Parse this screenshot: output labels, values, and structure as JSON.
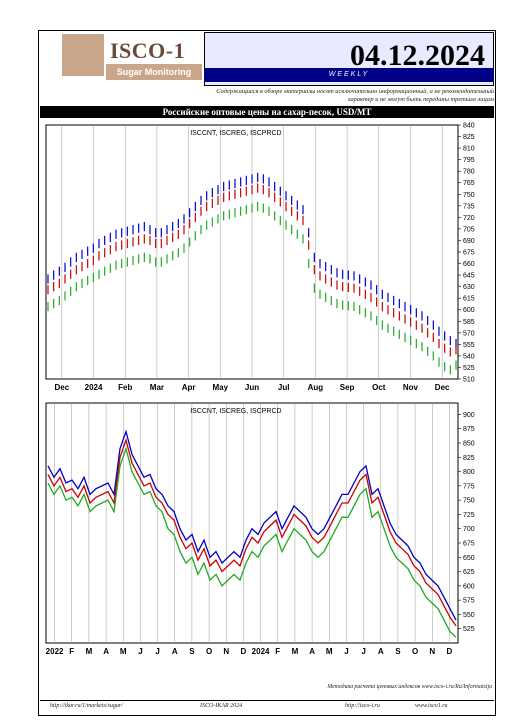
{
  "header": {
    "logo_text": "ISCO-1",
    "logo_sub": "Sugar Monitoring",
    "date": "04.12.2024",
    "frequency": "WEEKLY",
    "disclaimer": "Содержащиеся в обзоре материалы носят исключительно информационный, а не рекомендательный характер и не могут быть переданы третьим лицам"
  },
  "section_title": "Российские оптовые цены на сахар-песок, USD/MT",
  "method_note": "Методика расчета ценовых индексов www.isco-i.ru/Ru/Informatsija",
  "footer": {
    "link1": "http://ikar.ru/1/markets/sugar/",
    "link2": "ISCO-IKAR 2024",
    "link3": "http://isco-i.ru",
    "link4": "www.isco1.ru"
  },
  "colors": {
    "blue": "#0000cc",
    "red": "#cc0000",
    "green": "#22aa22",
    "frame": "#000000",
    "accent": "#000088"
  },
  "chart_data": [
    {
      "type": "line",
      "title": "ISCCNT, ISCREG, ISCPRCD",
      "x_labels": [
        "Dec",
        "2024",
        "Feb",
        "Mar",
        "Apr",
        "May",
        "Jun",
        "Jul",
        "Aug",
        "Sep",
        "Oct",
        "Nov",
        "Dec"
      ],
      "y_ticks": [
        510,
        525,
        540,
        555,
        570,
        585,
        600,
        615,
        630,
        645,
        660,
        675,
        690,
        705,
        720,
        735,
        750,
        765,
        780,
        795,
        810,
        825,
        840
      ],
      "ylim": [
        510,
        840
      ],
      "series": [
        {
          "name": "ISCCNT",
          "color": "#0000cc",
          "values": [
            640,
            645,
            650,
            655,
            662,
            668,
            672,
            676,
            680,
            686,
            690,
            694,
            698,
            700,
            702,
            704,
            706,
            708,
            704,
            700,
            700,
            704,
            708,
            712,
            718,
            726,
            734,
            742,
            748,
            752,
            756,
            760,
            762,
            764,
            766,
            768,
            770,
            772,
            770,
            766,
            760,
            754,
            748,
            742,
            736,
            730,
            700,
            668,
            660,
            656,
            652,
            648,
            646,
            645,
            644,
            640,
            636,
            632,
            626,
            620,
            616,
            612,
            608,
            604,
            600,
            596,
            592,
            586,
            580,
            572,
            566,
            560,
            556
          ]
        },
        {
          "name": "ISCREG",
          "color": "#cc0000",
          "values": [
            626,
            630,
            634,
            640,
            646,
            652,
            656,
            660,
            664,
            670,
            674,
            678,
            682,
            684,
            686,
            688,
            690,
            692,
            690,
            686,
            686,
            690,
            694,
            698,
            704,
            712,
            720,
            728,
            734,
            738,
            742,
            746,
            748,
            750,
            752,
            754,
            756,
            758,
            756,
            752,
            746,
            740,
            734,
            728,
            722,
            716,
            684,
            652,
            644,
            640,
            636,
            632,
            630,
            629,
            628,
            624,
            620,
            616,
            610,
            604,
            600,
            596,
            592,
            588,
            584,
            580,
            576,
            570,
            564,
            556,
            550,
            545,
            548
          ]
        },
        {
          "name": "ISCPRCD",
          "color": "#22aa22",
          "values": [
            604,
            608,
            612,
            618,
            624,
            630,
            634,
            638,
            642,
            646,
            650,
            654,
            658,
            660,
            662,
            664,
            666,
            668,
            666,
            662,
            662,
            666,
            670,
            674,
            680,
            688,
            696,
            704,
            710,
            714,
            718,
            722,
            724,
            726,
            728,
            730,
            732,
            734,
            732,
            728,
            722,
            716,
            710,
            704,
            698,
            692,
            660,
            628,
            620,
            616,
            612,
            608,
            606,
            605,
            604,
            600,
            596,
            592,
            586,
            580,
            576,
            572,
            568,
            564,
            560,
            556,
            552,
            546,
            540,
            532,
            526,
            522,
            528
          ]
        }
      ]
    },
    {
      "type": "line",
      "title": "ISCCNT, ISCREG, ISCPRCD",
      "x_labels": [
        "2022",
        "F",
        "M",
        "A",
        "M",
        "J",
        "J",
        "A",
        "S",
        "O",
        "N",
        "D",
        "2024",
        "F",
        "M",
        "A",
        "M",
        "J",
        "J",
        "A",
        "S",
        "O",
        "N",
        "D"
      ],
      "y_ticks": [
        525,
        550,
        575,
        600,
        625,
        650,
        675,
        700,
        725,
        750,
        775,
        800,
        825,
        850,
        875,
        900
      ],
      "ylim": [
        500,
        920
      ],
      "series": [
        {
          "name": "ISCCNT",
          "color": "#0000cc",
          "values": [
            810,
            790,
            805,
            780,
            785,
            770,
            790,
            760,
            770,
            775,
            780,
            760,
            840,
            870,
            830,
            810,
            790,
            795,
            770,
            760,
            740,
            730,
            700,
            680,
            690,
            660,
            680,
            650,
            660,
            640,
            650,
            660,
            650,
            680,
            700,
            690,
            710,
            720,
            730,
            700,
            720,
            740,
            730,
            720,
            700,
            690,
            700,
            720,
            740,
            760,
            760,
            780,
            800,
            810,
            760,
            770,
            740,
            710,
            690,
            680,
            670,
            650,
            640,
            620,
            610,
            600,
            580,
            560,
            540
          ]
        },
        {
          "name": "ISCREG",
          "color": "#cc0000",
          "values": [
            795,
            775,
            790,
            765,
            770,
            755,
            775,
            745,
            755,
            760,
            765,
            745,
            825,
            855,
            815,
            795,
            775,
            780,
            755,
            745,
            725,
            715,
            685,
            665,
            675,
            645,
            665,
            635,
            645,
            625,
            635,
            645,
            635,
            665,
            685,
            675,
            695,
            705,
            715,
            685,
            705,
            725,
            715,
            705,
            685,
            675,
            685,
            705,
            725,
            745,
            745,
            765,
            785,
            795,
            745,
            755,
            725,
            695,
            675,
            665,
            655,
            635,
            625,
            605,
            595,
            585,
            565,
            545,
            530
          ]
        },
        {
          "name": "ISCPRCD",
          "color": "#22aa22",
          "values": [
            780,
            760,
            775,
            750,
            755,
            740,
            760,
            730,
            740,
            745,
            750,
            730,
            810,
            840,
            800,
            780,
            760,
            765,
            740,
            730,
            700,
            690,
            660,
            640,
            650,
            620,
            640,
            610,
            620,
            600,
            610,
            620,
            610,
            640,
            660,
            650,
            670,
            680,
            690,
            660,
            680,
            700,
            690,
            680,
            660,
            650,
            660,
            680,
            700,
            720,
            720,
            740,
            760,
            770,
            720,
            730,
            700,
            670,
            650,
            640,
            630,
            610,
            600,
            580,
            570,
            560,
            540,
            520,
            510
          ]
        }
      ]
    }
  ]
}
